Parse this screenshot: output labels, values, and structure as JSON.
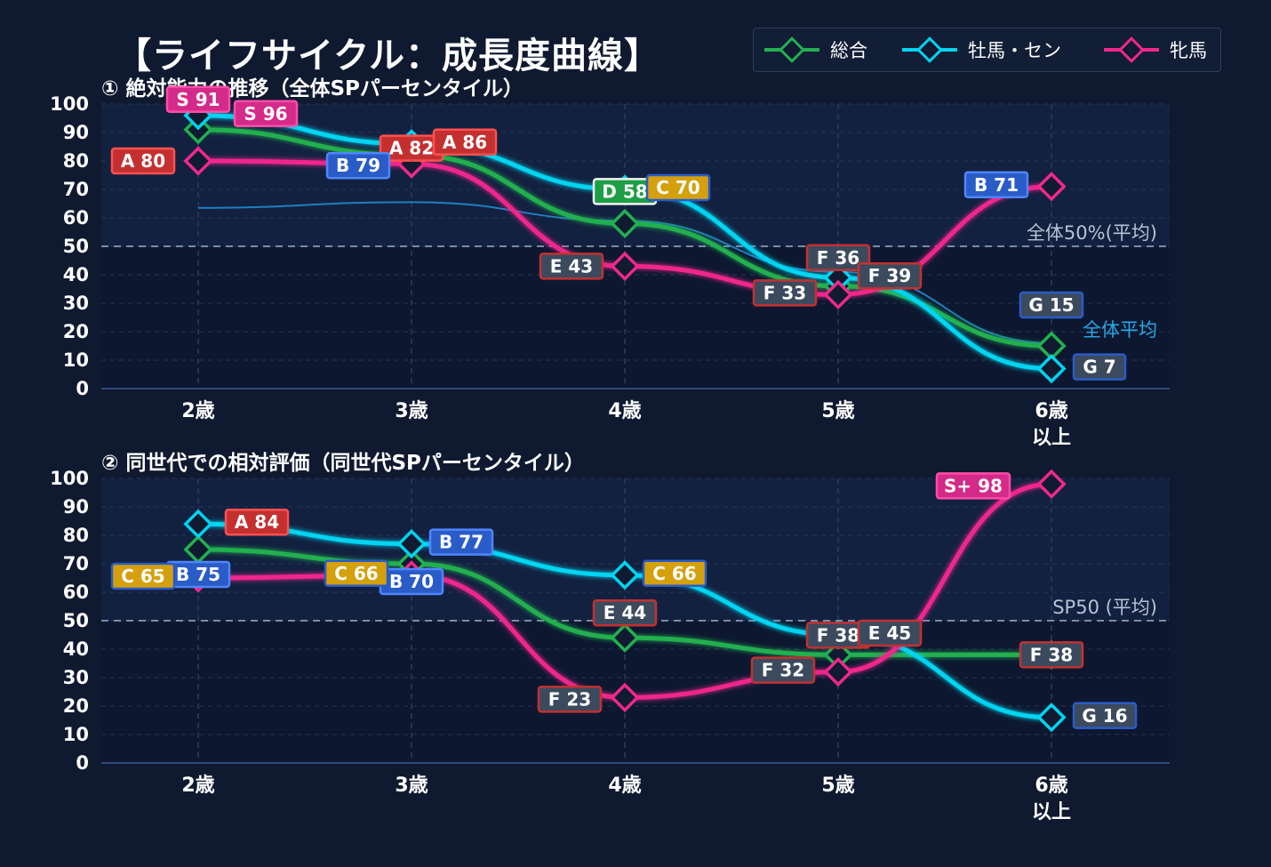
{
  "title": "【ライフサイクル：成長度曲線】",
  "legend": {
    "items": [
      {
        "label": "総合",
        "color": "#22b050"
      },
      {
        "label": "牡馬・セン",
        "color": "#00d4f0"
      },
      {
        "label": "牝馬",
        "color": "#f0288c"
      }
    ]
  },
  "subtitle1": "① 絶対能力の推移（全体SPパーセンタイル）",
  "subtitle2": "② 同世代での相対評価（同世代SPパーセンタイル）",
  "chart_data": [
    {
      "type": "line",
      "title": "① 絶対能力の推移（全体SPパーセンタイル）",
      "categories": [
        [
          "2歳"
        ],
        [
          "3歳"
        ],
        [
          "4歳"
        ],
        [
          "5歳"
        ],
        [
          "6歳",
          "以上"
        ]
      ],
      "ylim": [
        0,
        100
      ],
      "yticks": [
        0,
        10,
        20,
        30,
        40,
        50,
        60,
        70,
        80,
        90,
        100
      ],
      "reference_line": {
        "value": 50,
        "label": "全体50%(平均)"
      },
      "average_line": {
        "label": "全体平均",
        "values": [
          63.5,
          65.5,
          59,
          41,
          16
        ],
        "color": "#1e7fc0"
      },
      "series": [
        {
          "name": "総合",
          "color": "#22b050",
          "values": [
            91,
            82,
            58,
            36,
            15
          ],
          "labels": [
            "S 91",
            "A 82",
            "D 58",
            "F 36",
            "G 15"
          ]
        },
        {
          "name": "牡馬・セン",
          "color": "#00d4f0",
          "values": [
            96,
            86,
            70,
            39,
            7
          ],
          "labels": [
            "S 96",
            "A 86",
            "C 70",
            "F 39",
            "G 7"
          ]
        },
        {
          "name": "牝馬",
          "color": "#f0288c",
          "values": [
            80,
            79,
            43,
            33,
            71
          ],
          "labels": [
            "A 80",
            "B 79",
            "E 43",
            "F 33",
            "B 71"
          ]
        }
      ]
    },
    {
      "type": "line",
      "title": "② 同世代での相対評価（同世代SPパーセンタイル）",
      "categories": [
        [
          "2歳"
        ],
        [
          "3歳"
        ],
        [
          "4歳"
        ],
        [
          "5歳"
        ],
        [
          "6歳",
          "以上"
        ]
      ],
      "ylim": [
        0,
        100
      ],
      "yticks": [
        0,
        10,
        20,
        30,
        40,
        50,
        60,
        70,
        80,
        90,
        100
      ],
      "reference_line": {
        "value": 50,
        "label": "SP50 (平均)"
      },
      "series": [
        {
          "name": "総合",
          "color": "#22b050",
          "values": [
            75,
            70,
            44,
            38,
            38
          ],
          "labels": [
            "B 75",
            "B 70",
            "E 44",
            "F 38",
            "F 38"
          ]
        },
        {
          "name": "牡馬・セン",
          "color": "#00d4f0",
          "values": [
            84,
            77,
            66,
            45,
            16
          ],
          "labels": [
            "A 84",
            "B 77",
            "C 66",
            "E 45",
            "G 16"
          ]
        },
        {
          "name": "牝馬",
          "color": "#f0288c",
          "values": [
            65,
            66,
            23,
            32,
            98
          ],
          "labels": [
            "C 65",
            "C 66",
            "F 23",
            "F 32",
            "S+ 98"
          ]
        }
      ]
    }
  ]
}
